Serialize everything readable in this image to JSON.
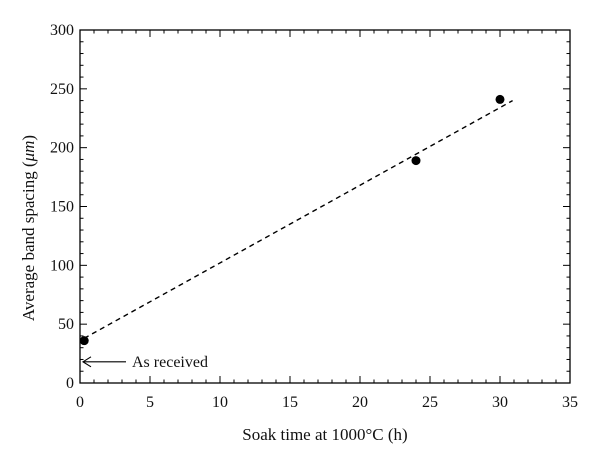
{
  "chart_data": {
    "type": "scatter",
    "title": "",
    "xlabel": "Soak time at 1000°C (h)",
    "ylabel_prefix": "Average band spacing (",
    "ylabel_unit": "μm",
    "ylabel_suffix": ")",
    "xlim": [
      0,
      35
    ],
    "ylim": [
      0,
      300
    ],
    "xticks": [
      0,
      5,
      10,
      15,
      20,
      25,
      30,
      35
    ],
    "yticks": [
      0,
      50,
      100,
      150,
      200,
      250,
      300
    ],
    "grid": false,
    "series": [
      {
        "type": "scatter",
        "x": [
          0.3,
          24,
          30
        ],
        "y": [
          36,
          189,
          241
        ]
      },
      {
        "type": "line",
        "style": "dashed",
        "x": [
          0.3,
          30.9
        ],
        "y": [
          38,
          240
        ]
      }
    ],
    "annotations": [
      {
        "text": "As received",
        "x": 0,
        "y": 18,
        "arrow": "points-left"
      }
    ]
  }
}
